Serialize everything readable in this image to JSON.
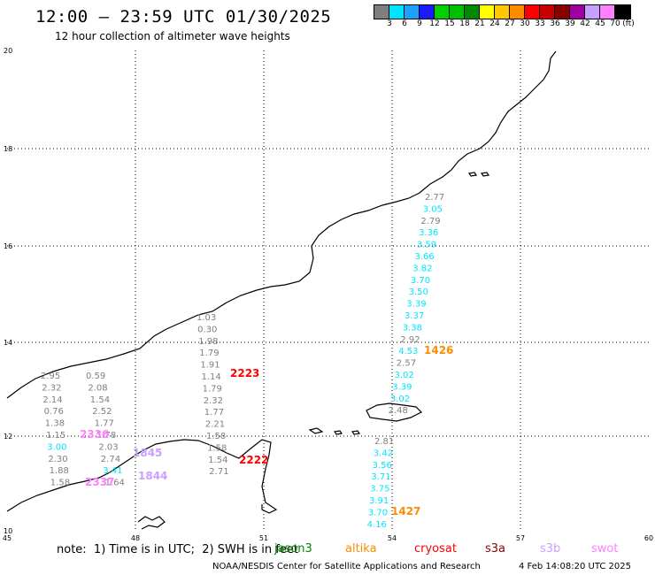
{
  "header": {
    "title": "12:00 – 23:59 UTC 01/30/2025",
    "subtitle": "12 hour collection of altimeter wave heights"
  },
  "colorbar": {
    "colors": [
      "#7f7f7f",
      "#00e5ff",
      "#1ea0ff",
      "#1a1aff",
      "#00d000",
      "#00c000",
      "#008a00",
      "#ffff00",
      "#ffc800",
      "#ff8c00",
      "#ff0000",
      "#c80000",
      "#8a0000",
      "#a000a0",
      "#c8a0ff",
      "#ff80ff",
      "#000000"
    ],
    "labels": [
      "3",
      "6",
      "9",
      "12",
      "15",
      "18",
      "21",
      "24",
      "27",
      "30",
      "33",
      "36",
      "39",
      "42",
      "45",
      "70"
    ],
    "unit": "(ft)"
  },
  "axes": {
    "x_ticks": [
      "45",
      "48",
      "51",
      "54",
      "57",
      "60"
    ],
    "y_ticks": [
      "20",
      "18",
      "16",
      "14",
      "12",
      "10"
    ]
  },
  "tracks": {
    "left_a": [
      "2.95",
      "2.32",
      "2.14",
      "0.76",
      "1.38",
      "1.15",
      "3.00",
      "2.30",
      "1.88",
      "1.58"
    ],
    "left_b": [
      "0.59",
      "2.08",
      "1.54",
      "2.52",
      "1.77",
      "1.78",
      "2.03",
      "2.74",
      "3.41",
      "1.64"
    ],
    "mid": [
      "1.03",
      "0.30",
      "1.98",
      "1.79",
      "1.91",
      "1.14",
      "1.79",
      "2.32",
      "1.77",
      "2.21",
      "1.58",
      "1.58",
      "1.54",
      "2.71"
    ],
    "east_top": [
      "2.77",
      "3.05",
      "2.79",
      "3.36",
      "3.59",
      "3.66",
      "3.82",
      "3.70",
      "3.50",
      "3.39",
      "3.37",
      "3.38",
      "2.92",
      "4.53",
      "2.57",
      "3.02",
      "3.39",
      "3.02",
      "2.48"
    ],
    "east_bottom": [
      "2.81",
      "3.42",
      "3.56",
      "3.71",
      "3.75",
      "3.91",
      "3.70",
      "4.16"
    ]
  },
  "pass_times": {
    "t1426": "1426",
    "t2223": "2223",
    "t2222": "2222",
    "t1427": "1427",
    "t2336": "2336",
    "t1845": "1845",
    "t2337": "2337",
    "t1844": "1844"
  },
  "legend": {
    "note": "note:  1) Time is in UTC;  2) SWH is in feet",
    "satellites": [
      {
        "name": "jason3",
        "color": "#008a00"
      },
      {
        "name": "altika",
        "color": "#ff8c00"
      },
      {
        "name": "cryosat",
        "color": "#ff0000"
      },
      {
        "name": "s3a",
        "color": "#8a0000"
      },
      {
        "name": "s3b",
        "color": "#c8a0ff"
      },
      {
        "name": "swot",
        "color": "#ff80ff"
      }
    ]
  },
  "footer": {
    "credit": "NOAA/NESDIS Center for Satellite Applications and Research",
    "timestamp": "4 Feb 14:08:20 UTC 2025"
  }
}
